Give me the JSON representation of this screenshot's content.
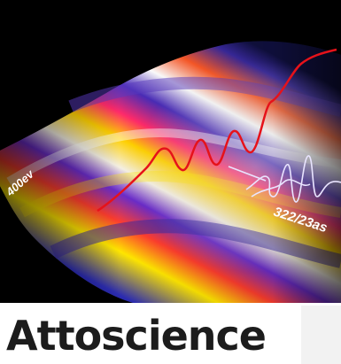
{
  "figure": {
    "energy_label": "400ev",
    "pulse_label": "322/23as",
    "colors": {
      "background": "#000000",
      "hot": "#ffe600",
      "warm": "#ff3d2e",
      "cool": "#6a2cc9",
      "highlight": "#ffffff",
      "trace": "#e6121a",
      "pulse": "#e9e4ff"
    }
  },
  "title": "Attoscience"
}
